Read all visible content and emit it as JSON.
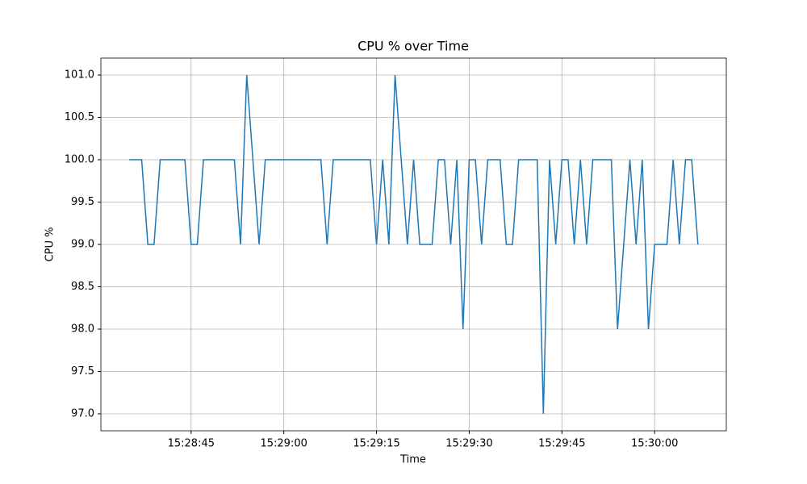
{
  "chart_data": {
    "type": "line",
    "title": "CPU % over Time",
    "xlabel": "Time",
    "ylabel": "CPU %",
    "color": "#1f77b4",
    "grid": true,
    "x": [
      "15:28:35",
      "15:28:36",
      "15:28:37",
      "15:28:38",
      "15:28:39",
      "15:28:40",
      "15:28:41",
      "15:28:42",
      "15:28:43",
      "15:28:44",
      "15:28:45",
      "15:28:46",
      "15:28:47",
      "15:28:48",
      "15:28:49",
      "15:28:50",
      "15:28:51",
      "15:28:52",
      "15:28:53",
      "15:28:54",
      "15:28:55",
      "15:28:56",
      "15:28:57",
      "15:28:58",
      "15:28:59",
      "15:29:00",
      "15:29:01",
      "15:29:02",
      "15:29:03",
      "15:29:04",
      "15:29:05",
      "15:29:06",
      "15:29:07",
      "15:29:08",
      "15:29:09",
      "15:29:10",
      "15:29:11",
      "15:29:12",
      "15:29:13",
      "15:29:14",
      "15:29:15",
      "15:29:16",
      "15:29:17",
      "15:29:18",
      "15:29:19",
      "15:29:20",
      "15:29:21",
      "15:29:22",
      "15:29:23",
      "15:29:24",
      "15:29:25",
      "15:29:26",
      "15:29:27",
      "15:29:28",
      "15:29:29",
      "15:29:30",
      "15:29:31",
      "15:29:32",
      "15:29:33",
      "15:29:34",
      "15:29:35",
      "15:29:36",
      "15:29:37",
      "15:29:38",
      "15:29:39",
      "15:29:40",
      "15:29:41",
      "15:29:42",
      "15:29:43",
      "15:29:44",
      "15:29:45",
      "15:29:46",
      "15:29:47",
      "15:29:48",
      "15:29:49",
      "15:29:50",
      "15:29:51",
      "15:29:52",
      "15:29:53",
      "15:29:54",
      "15:29:55",
      "15:29:56",
      "15:29:57",
      "15:29:58",
      "15:29:59",
      "15:30:00",
      "15:30:01",
      "15:30:02",
      "15:30:03",
      "15:30:04",
      "15:30:05",
      "15:30:06",
      "15:30:07"
    ],
    "values": [
      100,
      100,
      100,
      99,
      99,
      100,
      100,
      100,
      100,
      100,
      99,
      99,
      100,
      100,
      100,
      100,
      100,
      100,
      99,
      101,
      100,
      99,
      100,
      100,
      100,
      100,
      100,
      100,
      100,
      100,
      100,
      100,
      99,
      100,
      100,
      100,
      100,
      100,
      100,
      100,
      99,
      100,
      99,
      101,
      100,
      99,
      100,
      99,
      99,
      99,
      100,
      100,
      99,
      100,
      98,
      100,
      100,
      99,
      100,
      100,
      100,
      99,
      99,
      100,
      100,
      100,
      100,
      97,
      100,
      99,
      100,
      100,
      99,
      100,
      99,
      100,
      100,
      100,
      100,
      98,
      99,
      100,
      99,
      100,
      98,
      99,
      99,
      99,
      100,
      99,
      100,
      100,
      99
    ],
    "xlim": [
      "15:28:30.4",
      "15:30:11.6"
    ],
    "xticks": [
      "15:28:45",
      "15:29:00",
      "15:29:15",
      "15:29:30",
      "15:29:45",
      "15:30:00"
    ],
    "ylim": [
      96.8,
      101.2
    ],
    "yticks": [
      {
        "value": 97,
        "label": "97.0"
      },
      {
        "value": 97.5,
        "label": "97.5"
      },
      {
        "value": 98,
        "label": "98.0"
      },
      {
        "value": 98.5,
        "label": "98.5"
      },
      {
        "value": 99,
        "label": "99.0"
      },
      {
        "value": 99.5,
        "label": "99.5"
      },
      {
        "value": 100,
        "label": "100.0"
      },
      {
        "value": 100.5,
        "label": "100.5"
      },
      {
        "value": 101,
        "label": "101.0"
      }
    ]
  }
}
